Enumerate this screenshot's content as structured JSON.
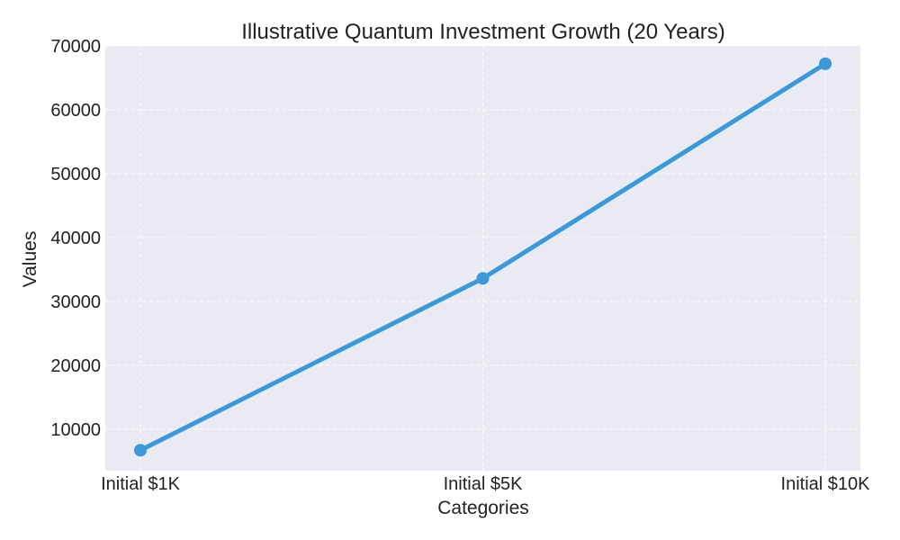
{
  "chart_data": {
    "type": "line",
    "title": "Illustrative Quantum Investment Growth (20 Years)",
    "xlabel": "Categories",
    "ylabel": "Values",
    "categories": [
      "Initial $1K",
      "Initial $5K",
      "Initial $10K"
    ],
    "series": [
      {
        "name": "Values",
        "values": [
          6700,
          33600,
          67200
        ]
      }
    ],
    "ylim": [
      3500,
      70000
    ],
    "yticks": [
      10000,
      20000,
      30000,
      40000,
      50000,
      60000,
      70000
    ],
    "ytick_labels": [
      "10000",
      "20000",
      "30000",
      "40000",
      "50000",
      "60000",
      "70000"
    ],
    "grid": true,
    "colors": {
      "plot_background": "#eaeaf2",
      "line": "#3a9ad9",
      "grid": "#ffffff",
      "text": "#222222"
    }
  }
}
